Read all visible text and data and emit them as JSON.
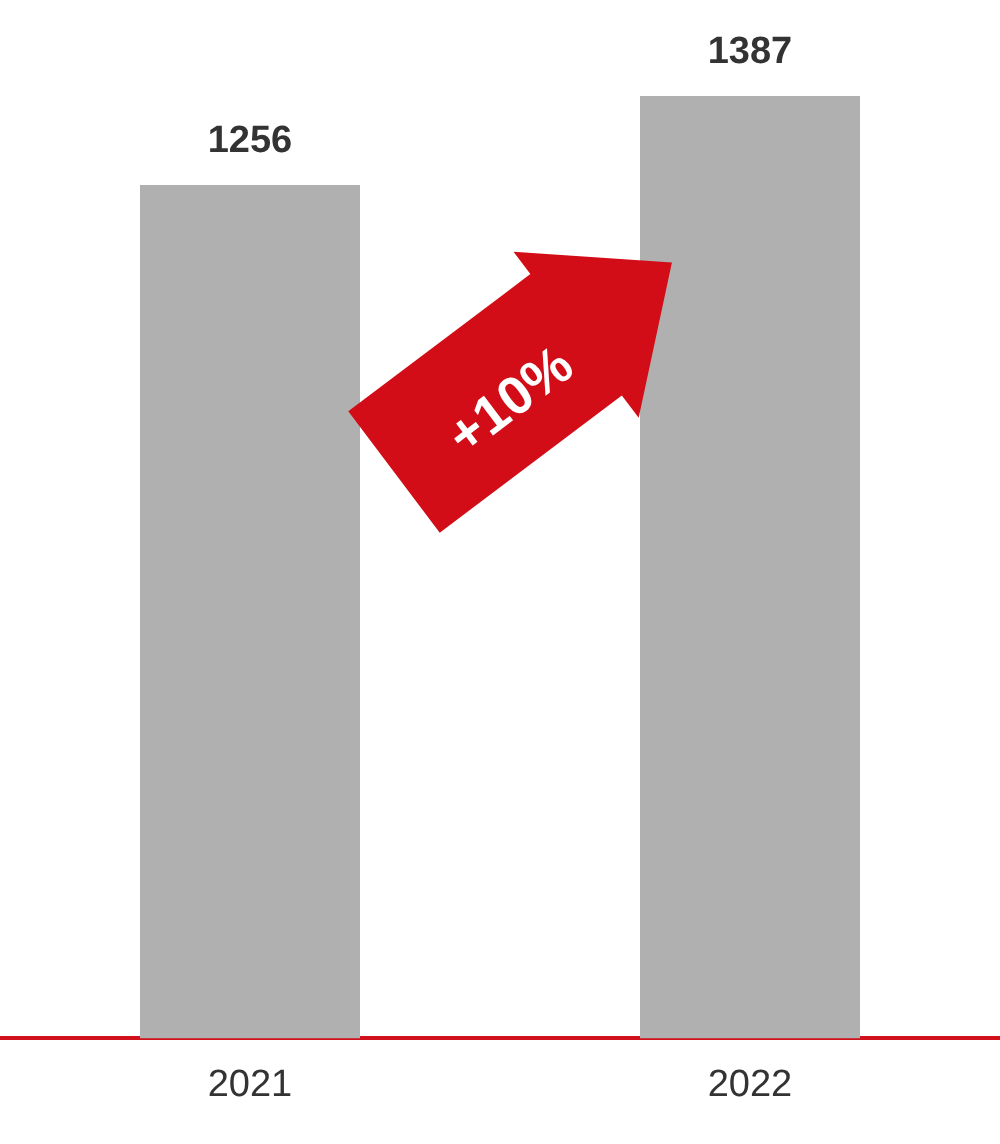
{
  "chart_data": {
    "type": "bar",
    "categories": [
      "2021",
      "2022"
    ],
    "values": [
      1256,
      1387
    ],
    "color": "#b0b0b0",
    "data_labels": true,
    "legend": false,
    "grid": false,
    "tick_labels": "x",
    "annotations": [
      "+10%"
    ]
  }
}
